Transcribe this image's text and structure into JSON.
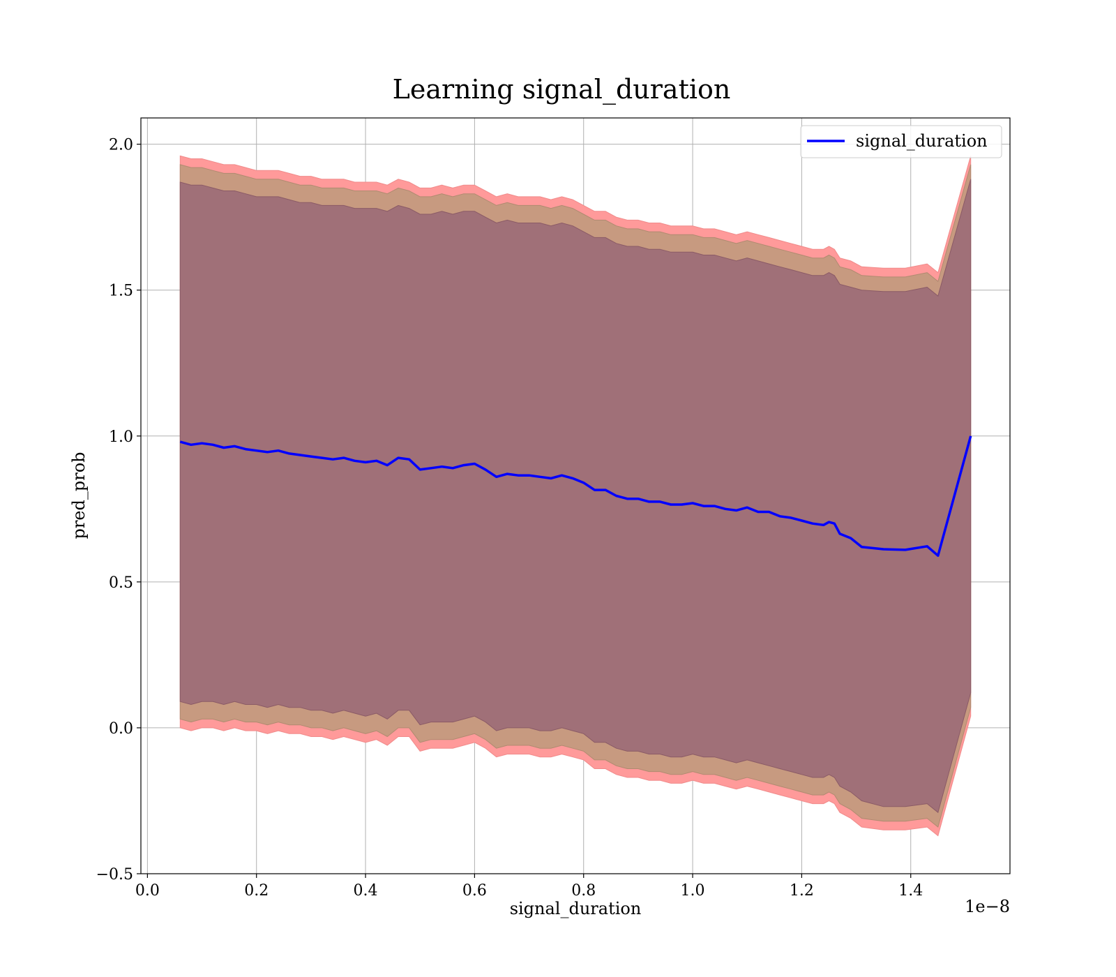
{
  "chart_data": {
    "type": "line",
    "title": "Learning signal_duration",
    "xlabel": "signal_duration",
    "ylabel": "pred_prob",
    "x_offset_label": "1e−8",
    "xlim": [
      -0.012,
      1.582
    ],
    "ylim": [
      -0.5,
      2.09
    ],
    "xticks": [
      0.0,
      0.2,
      0.4,
      0.6,
      0.8,
      1.0,
      1.2,
      1.4
    ],
    "xtick_labels": [
      "0.0",
      "0.2",
      "0.4",
      "0.6",
      "0.8",
      "1.0",
      "1.2",
      "1.4"
    ],
    "yticks": [
      -0.5,
      0.0,
      0.5,
      1.0,
      1.5,
      2.0
    ],
    "ytick_labels": [
      "−0.5",
      "0.0",
      "0.5",
      "1.0",
      "1.5",
      "2.0"
    ],
    "grid": true,
    "legend": {
      "position": "top-right",
      "entries": [
        "signal_duration"
      ]
    },
    "colors": {
      "line": "#0000ff",
      "band_outer": "#ff9a9a",
      "band_mid": "#c79a80",
      "band_inner": "#a07078"
    },
    "series": [
      {
        "name": "signal_duration",
        "x": [
          0.06,
          0.08,
          0.1,
          0.12,
          0.14,
          0.16,
          0.18,
          0.2,
          0.22,
          0.24,
          0.26,
          0.28,
          0.3,
          0.32,
          0.34,
          0.36,
          0.38,
          0.4,
          0.42,
          0.44,
          0.46,
          0.48,
          0.5,
          0.52,
          0.54,
          0.56,
          0.58,
          0.6,
          0.62,
          0.64,
          0.66,
          0.68,
          0.7,
          0.72,
          0.74,
          0.76,
          0.78,
          0.8,
          0.82,
          0.84,
          0.86,
          0.88,
          0.9,
          0.92,
          0.94,
          0.96,
          0.98,
          1.0,
          1.02,
          1.04,
          1.06,
          1.08,
          1.1,
          1.12,
          1.14,
          1.16,
          1.18,
          1.2,
          1.22,
          1.24,
          1.25,
          1.26,
          1.27,
          1.29,
          1.31,
          1.35,
          1.39,
          1.43,
          1.45,
          1.51
        ],
        "y": [
          0.98,
          0.97,
          0.975,
          0.97,
          0.96,
          0.965,
          0.955,
          0.95,
          0.945,
          0.95,
          0.94,
          0.935,
          0.93,
          0.925,
          0.92,
          0.925,
          0.915,
          0.91,
          0.915,
          0.9,
          0.925,
          0.92,
          0.885,
          0.89,
          0.895,
          0.89,
          0.9,
          0.905,
          0.885,
          0.86,
          0.87,
          0.865,
          0.865,
          0.86,
          0.855,
          0.865,
          0.855,
          0.84,
          0.815,
          0.815,
          0.795,
          0.785,
          0.785,
          0.775,
          0.775,
          0.765,
          0.765,
          0.77,
          0.76,
          0.76,
          0.75,
          0.745,
          0.755,
          0.74,
          0.74,
          0.725,
          0.72,
          0.71,
          0.7,
          0.695,
          0.705,
          0.7,
          0.665,
          0.65,
          0.62,
          0.612,
          0.61,
          0.622,
          0.59,
          1.0
        ]
      }
    ],
    "bands": [
      {
        "upper": [
          1.96,
          1.95,
          1.95,
          1.94,
          1.93,
          1.93,
          1.92,
          1.91,
          1.91,
          1.91,
          1.9,
          1.89,
          1.89,
          1.88,
          1.88,
          1.88,
          1.87,
          1.87,
          1.87,
          1.86,
          1.88,
          1.87,
          1.85,
          1.85,
          1.86,
          1.85,
          1.86,
          1.86,
          1.84,
          1.82,
          1.83,
          1.82,
          1.82,
          1.82,
          1.81,
          1.82,
          1.81,
          1.79,
          1.77,
          1.77,
          1.75,
          1.74,
          1.74,
          1.73,
          1.73,
          1.72,
          1.72,
          1.72,
          1.71,
          1.71,
          1.7,
          1.69,
          1.7,
          1.69,
          1.68,
          1.67,
          1.66,
          1.65,
          1.64,
          1.64,
          1.65,
          1.64,
          1.61,
          1.6,
          1.58,
          1.575,
          1.575,
          1.59,
          1.56,
          1.96
        ],
        "lower": [
          0.0,
          -0.01,
          -0.0,
          -0.0,
          -0.01,
          -0.0,
          -0.01,
          -0.01,
          -0.02,
          -0.01,
          -0.02,
          -0.02,
          -0.03,
          -0.03,
          -0.04,
          -0.03,
          -0.04,
          -0.05,
          -0.04,
          -0.06,
          -0.03,
          -0.03,
          -0.08,
          -0.07,
          -0.07,
          -0.07,
          -0.06,
          -0.05,
          -0.07,
          -0.1,
          -0.09,
          -0.09,
          -0.09,
          -0.1,
          -0.1,
          -0.09,
          -0.1,
          -0.11,
          -0.14,
          -0.14,
          -0.16,
          -0.17,
          -0.17,
          -0.18,
          -0.18,
          -0.19,
          -0.19,
          -0.18,
          -0.19,
          -0.19,
          -0.2,
          -0.21,
          -0.2,
          -0.21,
          -0.22,
          -0.23,
          -0.24,
          -0.25,
          -0.26,
          -0.26,
          -0.25,
          -0.26,
          -0.29,
          -0.31,
          -0.34,
          -0.35,
          -0.35,
          -0.34,
          -0.37,
          0.04
        ]
      },
      {
        "upper": [
          1.93,
          1.92,
          1.92,
          1.91,
          1.9,
          1.9,
          1.89,
          1.88,
          1.88,
          1.88,
          1.87,
          1.86,
          1.86,
          1.85,
          1.85,
          1.85,
          1.84,
          1.84,
          1.84,
          1.83,
          1.85,
          1.84,
          1.82,
          1.82,
          1.83,
          1.82,
          1.83,
          1.83,
          1.81,
          1.79,
          1.8,
          1.79,
          1.79,
          1.79,
          1.78,
          1.79,
          1.78,
          1.76,
          1.74,
          1.74,
          1.72,
          1.71,
          1.71,
          1.7,
          1.7,
          1.69,
          1.69,
          1.69,
          1.68,
          1.68,
          1.67,
          1.66,
          1.67,
          1.66,
          1.65,
          1.64,
          1.63,
          1.62,
          1.61,
          1.61,
          1.62,
          1.61,
          1.58,
          1.57,
          1.55,
          1.545,
          1.545,
          1.56,
          1.53,
          1.93
        ],
        "lower": [
          0.03,
          0.02,
          0.03,
          0.03,
          0.02,
          0.03,
          0.02,
          0.02,
          0.01,
          0.02,
          0.01,
          0.01,
          0.0,
          0.0,
          -0.01,
          0.0,
          -0.01,
          -0.02,
          -0.01,
          -0.03,
          0.0,
          0.0,
          -0.05,
          -0.04,
          -0.04,
          -0.04,
          -0.03,
          -0.02,
          -0.04,
          -0.07,
          -0.06,
          -0.06,
          -0.06,
          -0.07,
          -0.07,
          -0.06,
          -0.07,
          -0.08,
          -0.11,
          -0.11,
          -0.13,
          -0.14,
          -0.14,
          -0.15,
          -0.15,
          -0.16,
          -0.16,
          -0.15,
          -0.16,
          -0.16,
          -0.17,
          -0.18,
          -0.17,
          -0.18,
          -0.19,
          -0.2,
          -0.21,
          -0.22,
          -0.23,
          -0.23,
          -0.22,
          -0.23,
          -0.26,
          -0.28,
          -0.31,
          -0.32,
          -0.32,
          -0.31,
          -0.34,
          0.07
        ]
      },
      {
        "upper": [
          1.87,
          1.86,
          1.86,
          1.85,
          1.84,
          1.84,
          1.83,
          1.82,
          1.82,
          1.82,
          1.81,
          1.8,
          1.8,
          1.79,
          1.79,
          1.79,
          1.78,
          1.78,
          1.78,
          1.77,
          1.79,
          1.78,
          1.76,
          1.76,
          1.77,
          1.76,
          1.77,
          1.77,
          1.75,
          1.73,
          1.74,
          1.73,
          1.73,
          1.73,
          1.72,
          1.73,
          1.72,
          1.7,
          1.68,
          1.68,
          1.66,
          1.65,
          1.65,
          1.64,
          1.64,
          1.63,
          1.63,
          1.63,
          1.62,
          1.62,
          1.61,
          1.6,
          1.61,
          1.6,
          1.59,
          1.58,
          1.57,
          1.56,
          1.55,
          1.55,
          1.56,
          1.55,
          1.52,
          1.51,
          1.5,
          1.495,
          1.495,
          1.51,
          1.48,
          1.88
        ],
        "lower": [
          0.09,
          0.08,
          0.09,
          0.09,
          0.08,
          0.09,
          0.08,
          0.08,
          0.07,
          0.08,
          0.07,
          0.07,
          0.06,
          0.06,
          0.05,
          0.06,
          0.05,
          0.04,
          0.05,
          0.03,
          0.06,
          0.06,
          0.01,
          0.02,
          0.02,
          0.02,
          0.03,
          0.04,
          0.02,
          -0.01,
          0.0,
          0.0,
          0.0,
          -0.01,
          -0.01,
          0.0,
          -0.01,
          -0.02,
          -0.05,
          -0.05,
          -0.07,
          -0.08,
          -0.08,
          -0.09,
          -0.09,
          -0.1,
          -0.1,
          -0.09,
          -0.1,
          -0.1,
          -0.11,
          -0.12,
          -0.11,
          -0.12,
          -0.13,
          -0.14,
          -0.15,
          -0.16,
          -0.17,
          -0.17,
          -0.16,
          -0.17,
          -0.2,
          -0.22,
          -0.25,
          -0.27,
          -0.27,
          -0.26,
          -0.29,
          0.12
        ]
      }
    ]
  }
}
